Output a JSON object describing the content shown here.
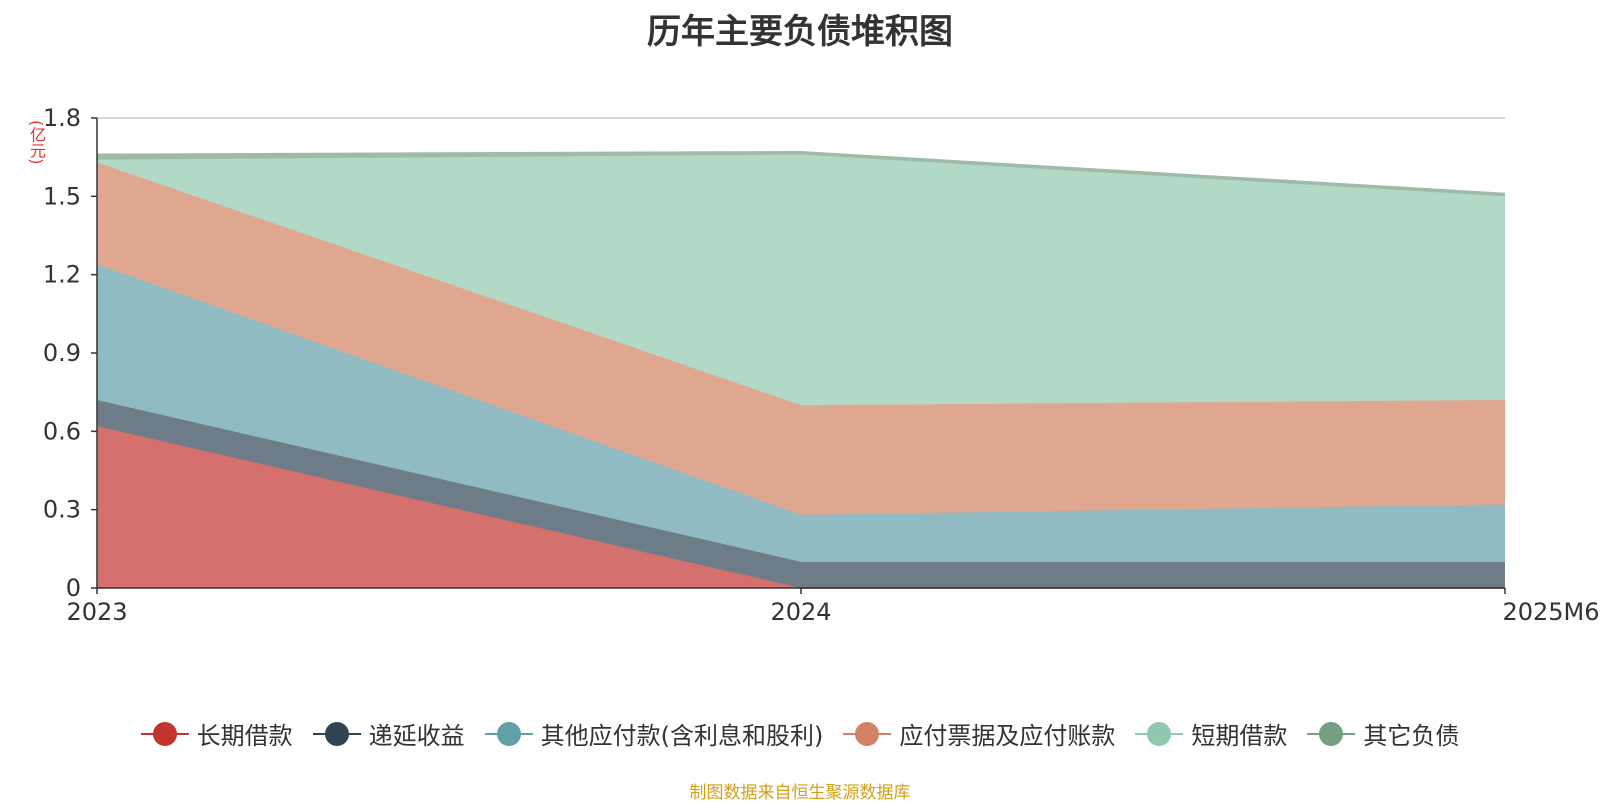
{
  "chart_data": {
    "type": "area",
    "stacked": true,
    "title": "历年主要负债堆积图",
    "unit_label": "(亿元)",
    "categories": [
      "2023",
      "2024",
      "2025M6"
    ],
    "ylim": [
      0,
      1.8
    ],
    "yticks": [
      "0",
      "0.3",
      "0.6",
      "0.9",
      "1.2",
      "1.5",
      "1.8"
    ],
    "ytick_values": [
      0,
      0.3,
      0.6,
      0.9,
      1.2,
      1.5,
      1.8
    ],
    "grid": true,
    "legend_position": "bottom",
    "series": [
      {
        "name": "长期借款",
        "values": [
          0.62,
          0.0,
          0.0
        ],
        "color": "#c23531",
        "fill": "#d4706d"
      },
      {
        "name": "递延收益",
        "values": [
          0.1,
          0.1,
          0.1
        ],
        "color": "#2f4554",
        "fill": "#6e7c87"
      },
      {
        "name": "其他应付款(含利息和股利)",
        "values": [
          0.52,
          0.18,
          0.22
        ],
        "color": "#61a0a8",
        "fill": "#90bbc2"
      },
      {
        "name": "应付票据及应付账款",
        "values": [
          0.39,
          0.42,
          0.4
        ],
        "color": "#d48265",
        "fill": "#e0a790"
      },
      {
        "name": "短期借款",
        "values": [
          0.01,
          0.96,
          0.78
        ],
        "color": "#91c7ae",
        "fill": "#b2d8c6"
      },
      {
        "name": "其它负债",
        "values": [
          0.02,
          0.01,
          0.01
        ],
        "color": "#749f83",
        "fill": "#9fbba8"
      }
    ]
  },
  "source_note": "制图数据来自恒生聚源数据库"
}
